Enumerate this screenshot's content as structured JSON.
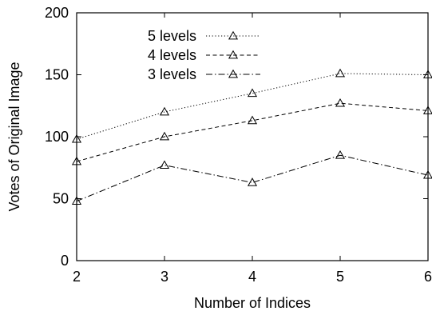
{
  "chart_data": {
    "type": "line",
    "title": "",
    "xlabel": "Number of Indices",
    "ylabel": "Votes of Original Image",
    "x": [
      2,
      3,
      4,
      5,
      6
    ],
    "xlim": [
      2,
      6
    ],
    "ylim": [
      0,
      200
    ],
    "xticks": [
      "2",
      "3",
      "4",
      "5",
      "6"
    ],
    "yticks": [
      "0",
      "50",
      "100",
      "150",
      "200"
    ],
    "grid": false,
    "legend_position": "top-left",
    "series": [
      {
        "name": "5 levels",
        "values": [
          98,
          120,
          135,
          151,
          150
        ],
        "line_style": "dotted",
        "marker": "triangle"
      },
      {
        "name": "4 levels",
        "values": [
          80,
          100,
          113,
          127,
          121
        ],
        "line_style": "dashed",
        "marker": "triangle"
      },
      {
        "name": "3 levels",
        "values": [
          48,
          77,
          63,
          85,
          69
        ],
        "line_style": "dash-dot",
        "marker": "triangle"
      }
    ]
  }
}
